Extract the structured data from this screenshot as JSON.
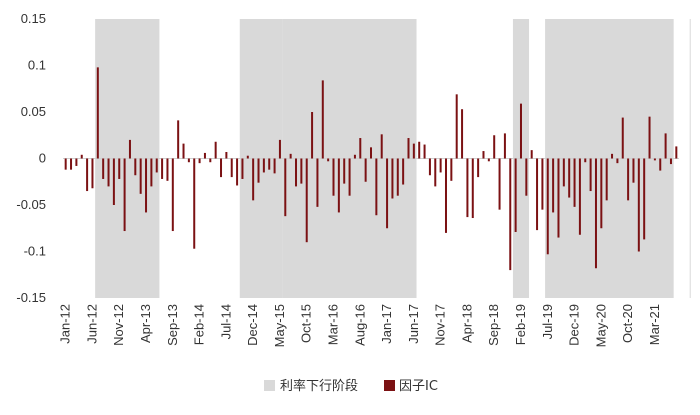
{
  "chart_data": {
    "type": "bar",
    "title": "",
    "xlabel": "",
    "ylabel": "",
    "ylim": [
      -0.15,
      0.15
    ],
    "yticks": [
      0.15,
      0.1,
      0.05,
      0,
      -0.05,
      -0.1,
      -0.15
    ],
    "ytick_labels": [
      "0.15",
      "0.1",
      "0.05",
      "0",
      "-0.05",
      "-0.1",
      "-0.15"
    ],
    "x_start": "2012-01",
    "xtick_labels": [
      "Jan-12",
      "Jun-12",
      "Nov-12",
      "Apr-13",
      "Sep-13",
      "Feb-14",
      "Jul-14",
      "Dec-14",
      "May-15",
      "Oct-15",
      "Mar-16",
      "Aug-16",
      "Jan-17",
      "Jun-17",
      "Nov-17",
      "Apr-18",
      "Sep-18",
      "Feb-19",
      "Jul-19",
      "Dec-19",
      "May-20",
      "Oct-20",
      "Mar-21"
    ],
    "grid": false,
    "legend_position": "bottom",
    "colors": {
      "factor_ic": "#7b1113",
      "rate_down": "#d9d9d9"
    },
    "legend": [
      {
        "key": "rate_down",
        "label": "利率下行阶段"
      },
      {
        "key": "factor_ic",
        "label": "因子IC"
      }
    ],
    "rate_down_periods": [
      {
        "start": "2012-07",
        "end": "2013-06"
      },
      {
        "start": "2014-10",
        "end": "2015-05"
      },
      {
        "start": "2015-06",
        "end": "2017-06"
      },
      {
        "start": "2019-01",
        "end": "2019-03"
      },
      {
        "start": "2019-07",
        "end": "2021-06"
      },
      {
        "start": "2021-10",
        "end": "2021-11"
      }
    ],
    "series": [
      {
        "name": "因子IC",
        "values": [
          -0.012,
          -0.012,
          -0.008,
          0.004,
          -0.035,
          -0.032,
          0.098,
          -0.022,
          -0.03,
          -0.05,
          -0.022,
          -0.078,
          0.02,
          -0.018,
          -0.038,
          -0.058,
          -0.03,
          -0.015,
          -0.022,
          -0.024,
          -0.078,
          0.041,
          0.016,
          -0.004,
          -0.097,
          -0.005,
          0.006,
          -0.004,
          0.018,
          -0.02,
          0.007,
          -0.02,
          -0.029,
          -0.022,
          0.003,
          -0.045,
          -0.026,
          -0.015,
          -0.012,
          -0.016,
          0.02,
          -0.062,
          0.005,
          -0.03,
          -0.027,
          -0.09,
          0.05,
          -0.052,
          0.084,
          -0.003,
          -0.04,
          -0.058,
          -0.027,
          -0.04,
          0.004,
          0.022,
          -0.025,
          0.012,
          -0.061,
          0.026,
          -0.075,
          -0.043,
          -0.04,
          -0.028,
          0.022,
          0.016,
          0.018,
          0.015,
          -0.018,
          -0.03,
          -0.015,
          -0.08,
          -0.024,
          0.069,
          0.053,
          -0.063,
          -0.064,
          -0.02,
          0.008,
          -0.003,
          0.025,
          -0.055,
          0.027,
          -0.12,
          -0.079,
          0.059,
          -0.04,
          0.009,
          -0.077,
          -0.055,
          -0.103,
          -0.058,
          -0.085,
          -0.03,
          -0.042,
          -0.052,
          -0.082,
          -0.004,
          -0.035,
          -0.118,
          -0.075,
          -0.045,
          0.005,
          -0.005,
          0.044,
          -0.045,
          -0.026,
          -0.1,
          -0.087,
          0.045,
          -0.002,
          -0.013,
          0.027,
          -0.006,
          0.013
        ]
      }
    ]
  }
}
